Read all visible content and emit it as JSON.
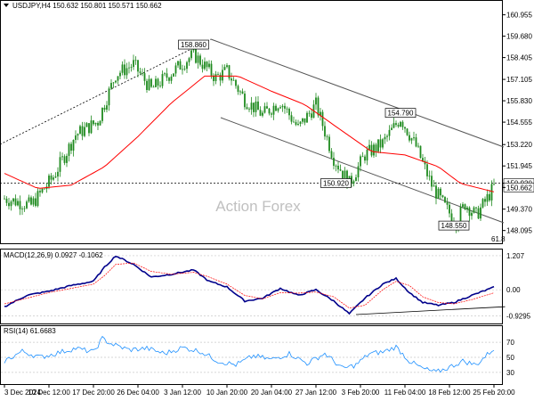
{
  "colors": {
    "candle": "#1f8a1f",
    "ma": "#ff0000",
    "macd": "#00008b",
    "signal": "#ff0000",
    "rsi": "#1e90ff",
    "channel": "#555555",
    "dotted": "#000000",
    "grid": "#c8c8c8",
    "watermark": "#c0c0c0"
  },
  "chart_data": [
    {
      "type": "candlestick",
      "header": "USDJPY,H4  150.632 150.801 150.571 150.662",
      "watermark": "Action Forex",
      "ylim": [
        147.6,
        161.2
      ],
      "y_ticks": [
        "160.955",
        "159.680",
        "158.405",
        "157.105",
        "155.830",
        "154.555",
        "153.220",
        "151.945",
        "150.920",
        "150.662",
        "149.370",
        "148.095"
      ],
      "y_tick_values": [
        160.955,
        159.68,
        158.405,
        157.105,
        155.83,
        154.555,
        153.22,
        151.945,
        150.92,
        150.662,
        149.37,
        148.095
      ],
      "last_price": 150.662,
      "level_line": 150.92,
      "level_note": "61.8",
      "annotations": [
        {
          "label": "158.860",
          "value": 158.86,
          "bar": 85
        },
        {
          "label": "154.790",
          "value": 154.79,
          "bar": 178
        },
        {
          "label": "150.920",
          "value": 150.92,
          "bar": 155
        },
        {
          "label": "148.550",
          "value": 148.55,
          "bar": 202
        }
      ],
      "anchors": {
        "bars": [
          0,
          12,
          22,
          32,
          42,
          50,
          58,
          66,
          75,
          85,
          95,
          100,
          108,
          116,
          124,
          132,
          140,
          148,
          155,
          162,
          170,
          178,
          185,
          192,
          198,
          203,
          207,
          212,
          216,
          220
        ],
        "close": [
          150.0,
          149.6,
          151.3,
          153.8,
          154.6,
          157.4,
          158.0,
          156.5,
          157.5,
          158.6,
          157.2,
          157.6,
          155.9,
          155.0,
          155.8,
          154.2,
          155.6,
          152.4,
          150.9,
          152.6,
          153.3,
          154.8,
          153.1,
          150.8,
          149.5,
          148.6,
          149.7,
          149.0,
          149.8,
          150.7
        ]
      },
      "ma_anchors": {
        "bars": [
          0,
          15,
          30,
          45,
          60,
          75,
          90,
          105,
          120,
          135,
          150,
          165,
          180,
          195,
          205,
          220
        ],
        "values": [
          151.5,
          150.6,
          150.8,
          151.9,
          153.7,
          155.7,
          157.3,
          157.3,
          156.4,
          155.6,
          154.2,
          152.8,
          152.6,
          151.9,
          150.9,
          150.4
        ]
      }
    },
    {
      "type": "line",
      "header": "MACD(12,26,9) 0.0927 -0.1062",
      "ylim": [
        -1.1,
        1.3
      ],
      "y_ticks": [
        "1.207",
        "0.00",
        "-0.9295"
      ],
      "y_tick_values": [
        1.207,
        0.0,
        -0.9295
      ],
      "series": [
        {
          "name": "MACD",
          "bars": [
            0,
            10,
            20,
            30,
            40,
            45,
            50,
            58,
            66,
            75,
            85,
            92,
            100,
            108,
            116,
            124,
            132,
            140,
            148,
            155,
            162,
            170,
            176,
            182,
            188,
            195,
            202,
            210,
            220
          ],
          "values": [
            -0.6,
            -0.2,
            -0.05,
            0.15,
            0.3,
            0.8,
            1.2,
            0.9,
            0.45,
            0.55,
            0.7,
            0.3,
            0.1,
            -0.4,
            -0.3,
            0.05,
            -0.2,
            0.0,
            -0.4,
            -0.85,
            -0.3,
            0.2,
            0.4,
            -0.1,
            -0.45,
            -0.55,
            -0.45,
            -0.2,
            0.09
          ]
        },
        {
          "name": "Signal",
          "bars": [
            0,
            10,
            20,
            30,
            40,
            45,
            50,
            58,
            66,
            75,
            85,
            92,
            100,
            108,
            116,
            124,
            132,
            140,
            148,
            155,
            162,
            170,
            176,
            182,
            188,
            195,
            202,
            210,
            220
          ],
          "values": [
            -0.5,
            -0.3,
            -0.1,
            0.05,
            0.2,
            0.5,
            0.9,
            0.95,
            0.65,
            0.55,
            0.62,
            0.45,
            0.2,
            -0.2,
            -0.32,
            -0.1,
            -0.12,
            -0.08,
            -0.25,
            -0.65,
            -0.55,
            0.0,
            0.3,
            0.15,
            -0.25,
            -0.45,
            -0.5,
            -0.35,
            -0.11
          ]
        }
      ],
      "trendline": {
        "from": {
          "bar": 158,
          "value": -0.88
        },
        "to": {
          "bar": 225,
          "value": -0.6
        }
      }
    },
    {
      "type": "line",
      "header": "RSI(14) 61.6683",
      "ylim": [
        18,
        82
      ],
      "y_ticks": [
        "70",
        "50",
        "30"
      ],
      "y_tick_values": [
        70,
        50,
        30
      ],
      "series": [
        {
          "name": "RSI",
          "bars": [
            0,
            8,
            16,
            24,
            32,
            40,
            44,
            48,
            56,
            64,
            72,
            80,
            88,
            96,
            104,
            112,
            120,
            128,
            136,
            144,
            152,
            158,
            164,
            170,
            176,
            182,
            188,
            194,
            200,
            206,
            212,
            220
          ],
          "values": [
            45,
            58,
            50,
            56,
            62,
            57,
            75,
            68,
            60,
            62,
            55,
            63,
            58,
            45,
            40,
            52,
            47,
            55,
            42,
            55,
            35,
            40,
            55,
            57,
            64,
            45,
            35,
            30,
            37,
            45,
            40,
            61.7
          ]
        }
      ]
    }
  ],
  "x_labels": [
    "3 Dec 2024",
    "10 Dec 12:00",
    "17 Dec 20:00",
    "26 Dec 04:00",
    "3 Jan 12:00",
    "10 Jan 20:00",
    "20 Jan 04:00",
    "27 Jan 12:00",
    "3 Feb 20:00",
    "11 Feb 04:00",
    "18 Feb 12:00",
    "25 Feb 20:00"
  ],
  "x_label_bars": [
    0,
    20,
    40,
    60,
    80,
    100,
    120,
    140,
    160,
    180,
    200,
    220
  ]
}
